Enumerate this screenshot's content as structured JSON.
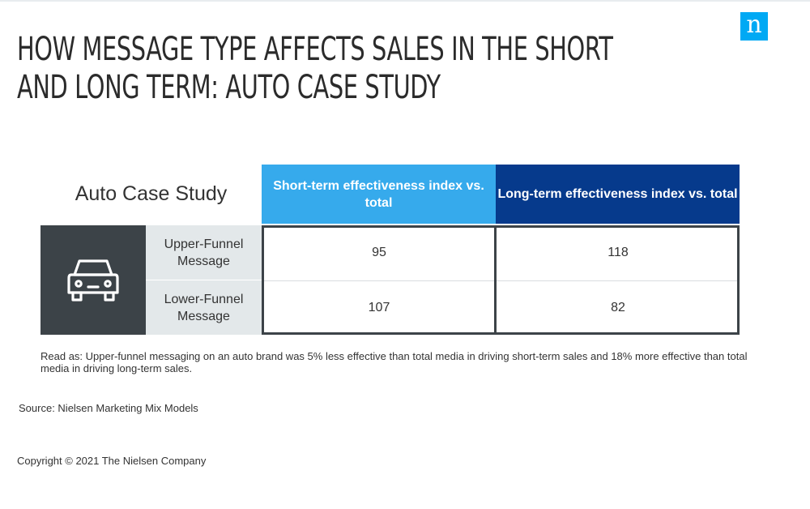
{
  "header": {
    "title_lines": [
      "How message type affects sales in the short",
      "and long term: auto case study"
    ],
    "logo_letter": "n"
  },
  "chart_data": {
    "type": "table",
    "corner_label": "Auto Case Study",
    "columns": [
      "Short-term effectiveness index vs. total",
      "Long-term effectiveness index vs. total"
    ],
    "rows": [
      {
        "label": "Upper-Funnel Message",
        "values": [
          95,
          118
        ]
      },
      {
        "label": "Lower-Funnel Message",
        "values": [
          107,
          82
        ]
      }
    ],
    "row_group_icon": "car-icon",
    "colors": {
      "short_term_header": "#36aaec",
      "long_term_header": "#063a8c",
      "row_label_bg": "#e3e8ea",
      "icon_bg": "#3c4348"
    }
  },
  "footnotes": {
    "read_as": "Read as: Upper-funnel messaging on an auto brand was 5% less effective than total media in driving short-term sales and 18% more effective than total media in driving long-term sales.",
    "source": "Source: Nielsen Marketing Mix Models",
    "copyright": "Copyright © 2021 The Nielsen Company"
  },
  "brand": {
    "accent": "#00a9f4",
    "logo_icon": "nielsen-logo-icon"
  }
}
